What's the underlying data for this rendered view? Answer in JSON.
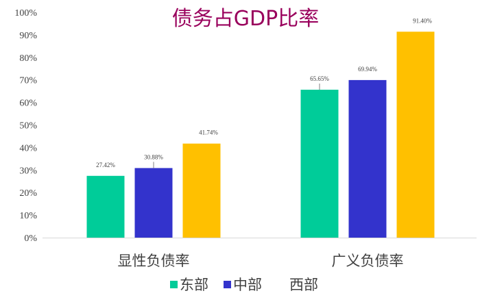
{
  "chart_data": {
    "type": "bar",
    "title": "债务占GDP比率",
    "categories": [
      "显性负债率",
      "广义负债率"
    ],
    "series": [
      {
        "name": "东部",
        "color": "#00CC99",
        "values": [
          27.42,
          65.65
        ],
        "labels": [
          "27.42%",
          "65.65%"
        ]
      },
      {
        "name": "中部",
        "color": "#3333CC",
        "values": [
          30.88,
          69.94
        ],
        "labels": [
          "30.88%",
          "69.94%"
        ]
      },
      {
        "name": "西部",
        "color": "#FFC000",
        "values": [
          41.74,
          91.4
        ],
        "labels": [
          "41.74%",
          "91.40%"
        ]
      }
    ],
    "yticks": [
      "0%",
      "10%",
      "20%",
      "30%",
      "40%",
      "50%",
      "60%",
      "70%",
      "80%",
      "90%",
      "100%"
    ],
    "ylim": [
      0,
      100
    ],
    "title_color": "#99005C",
    "legend_position": "bottom",
    "grid": false
  }
}
